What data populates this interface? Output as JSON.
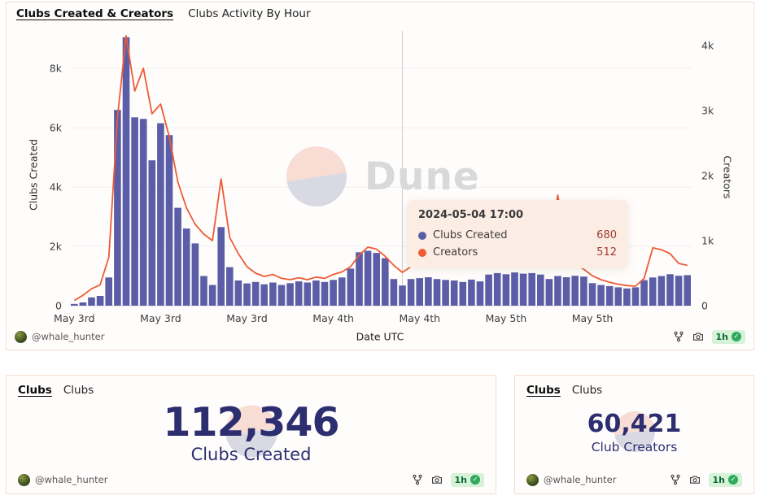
{
  "chart_card": {
    "tabs": [
      {
        "label": "Clubs Created & Creators",
        "active": true
      },
      {
        "label": "Clubs Activity By Hour",
        "active": false
      }
    ],
    "footer": {
      "handle": "@whale_hunter",
      "refresh_age": "1h"
    }
  },
  "chart_data": {
    "type": "bar+line",
    "title": "Clubs Created & Creators",
    "x_axis_label": "Date UTC",
    "watermark": "Dune",
    "left_axis": {
      "label": "Clubs Created",
      "max": 9100,
      "ticks": [
        {
          "value": 0,
          "label": "0"
        },
        {
          "value": 2000,
          "label": "2k"
        },
        {
          "value": 4000,
          "label": "4k"
        },
        {
          "value": 6000,
          "label": "6k"
        },
        {
          "value": 8000,
          "label": "8k"
        }
      ]
    },
    "right_axis": {
      "label": "Creators",
      "max": 4150,
      "ticks": [
        {
          "value": 0,
          "label": "0"
        },
        {
          "value": 1000,
          "label": "1k"
        },
        {
          "value": 2000,
          "label": "2k"
        },
        {
          "value": 3000,
          "label": "3k"
        },
        {
          "value": 4000,
          "label": "4k"
        }
      ]
    },
    "x_ticks": [
      {
        "index": 0,
        "label": "May 3rd"
      },
      {
        "index": 10,
        "label": "May 3rd"
      },
      {
        "index": 20,
        "label": "May 3rd"
      },
      {
        "index": 30,
        "label": "May 4th"
      },
      {
        "index": 40,
        "label": "May 4th"
      },
      {
        "index": 50,
        "label": "May 5th"
      },
      {
        "index": 60,
        "label": "May 5th"
      }
    ],
    "series": [
      {
        "name": "Clubs Created",
        "type": "bar",
        "axis": "left",
        "color": "#5b5ea6",
        "values": [
          60,
          110,
          280,
          330,
          950,
          6600,
          9050,
          6350,
          6300,
          4900,
          6150,
          5750,
          3300,
          2600,
          2100,
          1000,
          700,
          2650,
          1300,
          850,
          750,
          800,
          720,
          780,
          700,
          760,
          820,
          780,
          850,
          800,
          870,
          950,
          1250,
          1800,
          1850,
          1780,
          1600,
          900,
          680,
          900,
          930,
          960,
          900,
          870,
          850,
          800,
          880,
          820,
          1050,
          1100,
          1060,
          1120,
          1080,
          1100,
          1050,
          900,
          1000,
          960,
          1010,
          980,
          760,
          700,
          660,
          620,
          580,
          620,
          860,
          950,
          1000,
          1060,
          1010,
          1030
        ]
      },
      {
        "name": "Creators",
        "type": "line",
        "axis": "right",
        "color": "#ee5b35",
        "values": [
          80,
          160,
          260,
          320,
          750,
          2900,
          4150,
          3300,
          3650,
          2950,
          3100,
          2600,
          1900,
          1500,
          1250,
          1100,
          1000,
          1950,
          1050,
          800,
          600,
          500,
          450,
          480,
          420,
          400,
          430,
          400,
          440,
          420,
          480,
          520,
          600,
          780,
          900,
          870,
          760,
          620,
          512,
          600,
          700,
          780,
          740,
          700,
          660,
          640,
          680,
          640,
          720,
          760,
          730,
          700,
          680,
          720,
          680,
          900,
          1700,
          900,
          650,
          560,
          460,
          400,
          360,
          330,
          310,
          300,
          420,
          890,
          860,
          800,
          650,
          620
        ]
      }
    ],
    "tooltip": {
      "title": "2024-05-04 17:00",
      "hover_index": 38,
      "rows": [
        {
          "name": "Clubs Created",
          "value": "680",
          "color": "#5b5ea6"
        },
        {
          "name": "Creators",
          "value": "512",
          "color": "#ee5b35"
        }
      ]
    }
  },
  "counters": [
    {
      "tabs": [
        {
          "label": "Clubs",
          "active": true
        },
        {
          "label": "Clubs",
          "active": false
        }
      ],
      "value": "112,346",
      "label": "Clubs Created",
      "footer": {
        "handle": "@whale_hunter",
        "refresh_age": "1h"
      }
    },
    {
      "tabs": [
        {
          "label": "Clubs",
          "active": true
        },
        {
          "label": "Clubs",
          "active": false
        }
      ],
      "value": "60,421",
      "label": "Club Creators",
      "footer": {
        "handle": "@whale_hunter",
        "refresh_age": "1h"
      }
    }
  ],
  "colors": {
    "bar": "#5b5ea6",
    "line": "#ee5b35",
    "card_border": "#f4ddd0",
    "tooltip_bg": "#fcede4",
    "tooltip_value_text": "#9c3a30",
    "counter_text": "#2c2e70",
    "badge_bg": "#d6f2d8",
    "badge_text": "#0c6b34",
    "watermark_gray": "#d9d9d9"
  }
}
